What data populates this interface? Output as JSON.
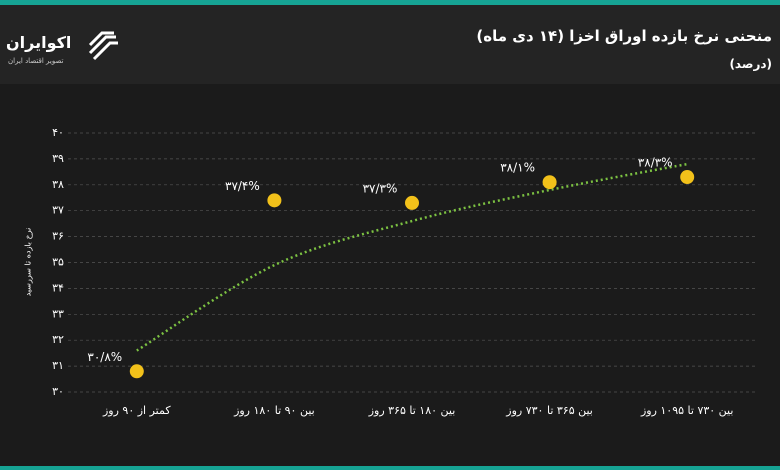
{
  "brand": {
    "name": "اکوایران",
    "tagline": "تصویر اقتصاد ایران"
  },
  "chart_data": {
    "type": "scatter",
    "title": "منحنی نرخ بازده اوراق اخزا (۱۴ دی ماه)",
    "subtitle": "(درصد)",
    "y_label": "نرخ بازده تا سررسید",
    "categories": [
      "کمتر از ۹۰ روز",
      "بین ۹۰ تا ۱۸۰ روز",
      "بین ۱۸۰ تا ۳۶۵ روز",
      "بین ۳۶۵ تا ۷۳۰ روز",
      "بین ۷۳۰ تا ۱۰۹۵ روز"
    ],
    "values": [
      30.8,
      37.4,
      37.3,
      38.1,
      38.3
    ],
    "value_labels": [
      "۳۰/۸%",
      "۳۷/۴%",
      "۳۷/۳%",
      "۳۸/۱%",
      "۳۸/۳%"
    ],
    "color": "#f2c11a",
    "trendline": {
      "color": "#7cc242",
      "values": [
        31.6,
        34.9,
        36.6,
        37.8,
        38.8
      ]
    },
    "ylim": [
      30,
      40
    ],
    "yticks": [
      {
        "value": 30,
        "label": "۳۰"
      },
      {
        "value": 31,
        "label": "۳۱"
      },
      {
        "value": 32,
        "label": "۳۲"
      },
      {
        "value": 33,
        "label": "۳۳"
      },
      {
        "value": 34,
        "label": "۳۴"
      },
      {
        "value": 35,
        "label": "۳۵"
      },
      {
        "value": 36,
        "label": "۳۶"
      },
      {
        "value": 37,
        "label": "۳۷"
      },
      {
        "value": 38,
        "label": "۳۸"
      },
      {
        "value": 39,
        "label": "۳۹"
      },
      {
        "value": 40,
        "label": "۴۰"
      }
    ],
    "grid": true
  }
}
